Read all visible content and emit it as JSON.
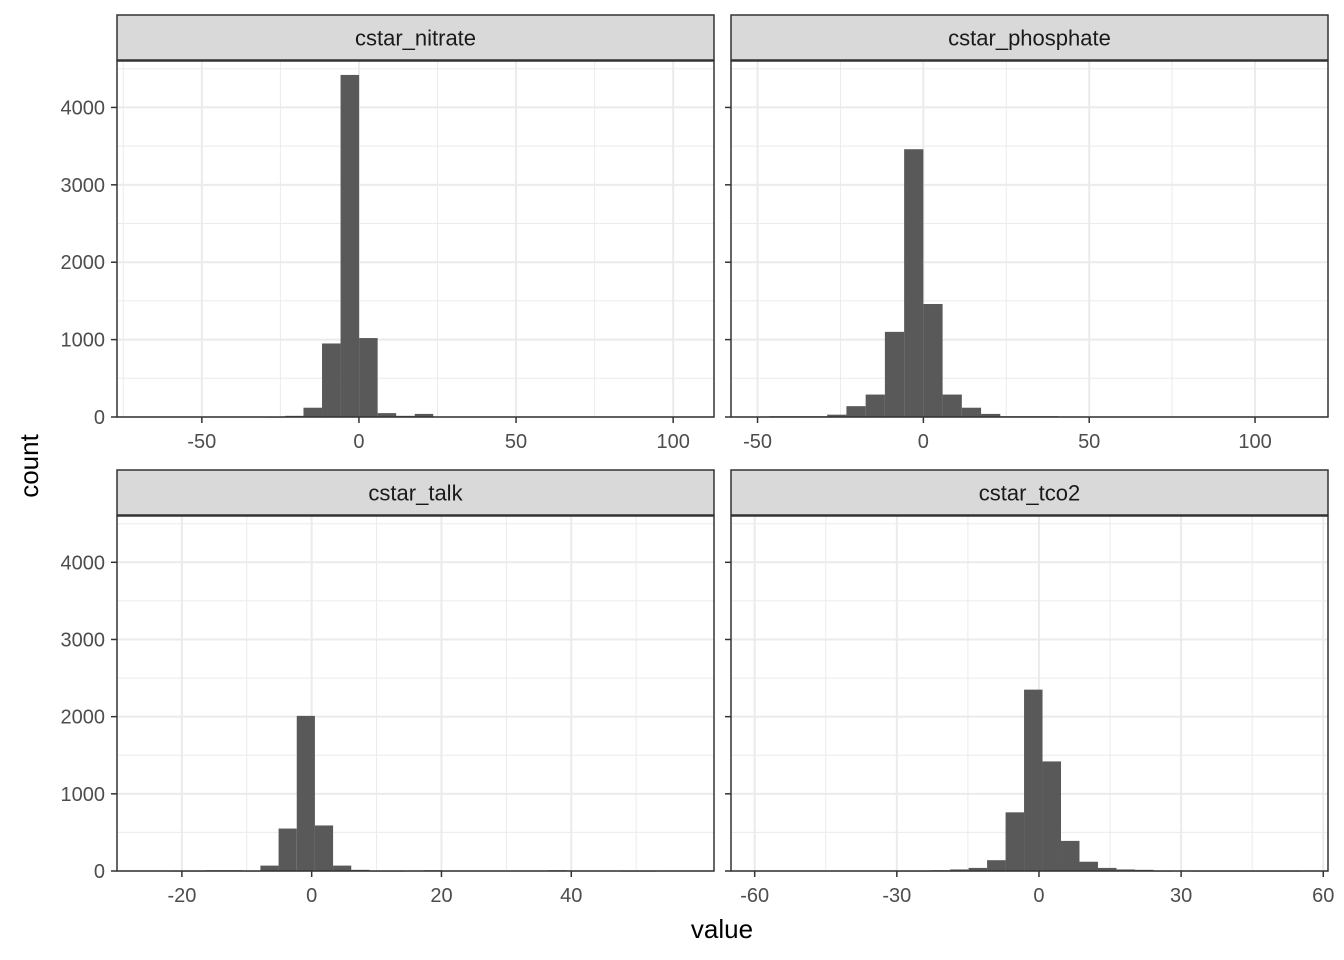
{
  "chart_data": {
    "type": "bar",
    "layout": "facet-wrap 2x2",
    "xlabel": "value",
    "ylabel": "count",
    "shared_y": true,
    "ylim": [
      0,
      4600
    ],
    "y_ticks": [
      0,
      1000,
      2000,
      3000,
      4000
    ],
    "grid": true,
    "colors": {
      "bar": "#595959",
      "strip": "#d9d9d9",
      "grid": "#ebebeb",
      "border": "#333333"
    },
    "panels": [
      {
        "name": "cstar_nitrate",
        "xlim": [
          -77,
          113
        ],
        "x_ticks": [
          -50,
          0,
          50,
          100
        ],
        "bin_width": 5.9,
        "bins": [
          {
            "x": -26.5,
            "count": 5
          },
          {
            "x": -20.6,
            "count": 15
          },
          {
            "x": -14.7,
            "count": 120
          },
          {
            "x": -8.8,
            "count": 950
          },
          {
            "x": -2.9,
            "count": 4420
          },
          {
            "x": 3.0,
            "count": 1020
          },
          {
            "x": 8.9,
            "count": 50
          },
          {
            "x": 14.8,
            "count": 15
          },
          {
            "x": 20.7,
            "count": 40
          }
        ]
      },
      {
        "name": "cstar_phosphate",
        "xlim": [
          -58,
          122
        ],
        "x_ticks": [
          -50,
          0,
          50,
          100
        ],
        "bin_width": 5.8,
        "bins": [
          {
            "x": -43.5,
            "count": 10
          },
          {
            "x": -37.7,
            "count": 10
          },
          {
            "x": -31.9,
            "count": 10
          },
          {
            "x": -26.1,
            "count": 30
          },
          {
            "x": -20.3,
            "count": 140
          },
          {
            "x": -14.5,
            "count": 290
          },
          {
            "x": -8.7,
            "count": 1100
          },
          {
            "x": -2.9,
            "count": 3460
          },
          {
            "x": 2.9,
            "count": 1460
          },
          {
            "x": 8.7,
            "count": 290
          },
          {
            "x": 14.5,
            "count": 120
          },
          {
            "x": 20.3,
            "count": 40
          },
          {
            "x": 26.1,
            "count": 10
          },
          {
            "x": 31.9,
            "count": 10
          },
          {
            "x": 37.7,
            "count": 10
          }
        ]
      },
      {
        "name": "cstar_talk",
        "xlim": [
          -30,
          62
        ],
        "x_ticks": [
          -20,
          0,
          20,
          40
        ],
        "bin_width": 2.8,
        "bins": [
          {
            "x": -20.5,
            "count": 5
          },
          {
            "x": -17.7,
            "count": 5
          },
          {
            "x": -14.9,
            "count": 10
          },
          {
            "x": -12.1,
            "count": 10
          },
          {
            "x": -9.3,
            "count": 5
          },
          {
            "x": -6.5,
            "count": 70
          },
          {
            "x": -3.7,
            "count": 550
          },
          {
            "x": -0.9,
            "count": 2010
          },
          {
            "x": 1.9,
            "count": 590
          },
          {
            "x": 4.7,
            "count": 70
          },
          {
            "x": 7.5,
            "count": 15
          },
          {
            "x": 10.3,
            "count": 5
          },
          {
            "x": 13.1,
            "count": 5
          },
          {
            "x": 18.7,
            "count": 10
          },
          {
            "x": 37.9,
            "count": 10
          },
          {
            "x": 49.1,
            "count": 5
          },
          {
            "x": 51.9,
            "count": 5
          }
        ]
      },
      {
        "name": "cstar_tco2",
        "xlim": [
          -65,
          61
        ],
        "x_ticks": [
          -60,
          -30,
          0,
          30,
          60
        ],
        "bin_width": 3.9,
        "bins": [
          {
            "x": -28.5,
            "count": 5
          },
          {
            "x": -24.6,
            "count": 5
          },
          {
            "x": -20.7,
            "count": 10
          },
          {
            "x": -16.8,
            "count": 20
          },
          {
            "x": -12.9,
            "count": 40
          },
          {
            "x": -9.0,
            "count": 140
          },
          {
            "x": -5.1,
            "count": 760
          },
          {
            "x": -1.2,
            "count": 2350
          },
          {
            "x": 2.7,
            "count": 1420
          },
          {
            "x": 6.6,
            "count": 390
          },
          {
            "x": 10.5,
            "count": 120
          },
          {
            "x": 14.4,
            "count": 40
          },
          {
            "x": 18.3,
            "count": 20
          },
          {
            "x": 22.2,
            "count": 15
          },
          {
            "x": 26.1,
            "count": 5
          },
          {
            "x": 33.9,
            "count": 5
          },
          {
            "x": 37.8,
            "count": 5
          },
          {
            "x": 41.7,
            "count": 5
          },
          {
            "x": 45.6,
            "count": 5
          },
          {
            "x": 49.5,
            "count": 5
          },
          {
            "x": 53.4,
            "count": 5
          }
        ]
      }
    ]
  }
}
